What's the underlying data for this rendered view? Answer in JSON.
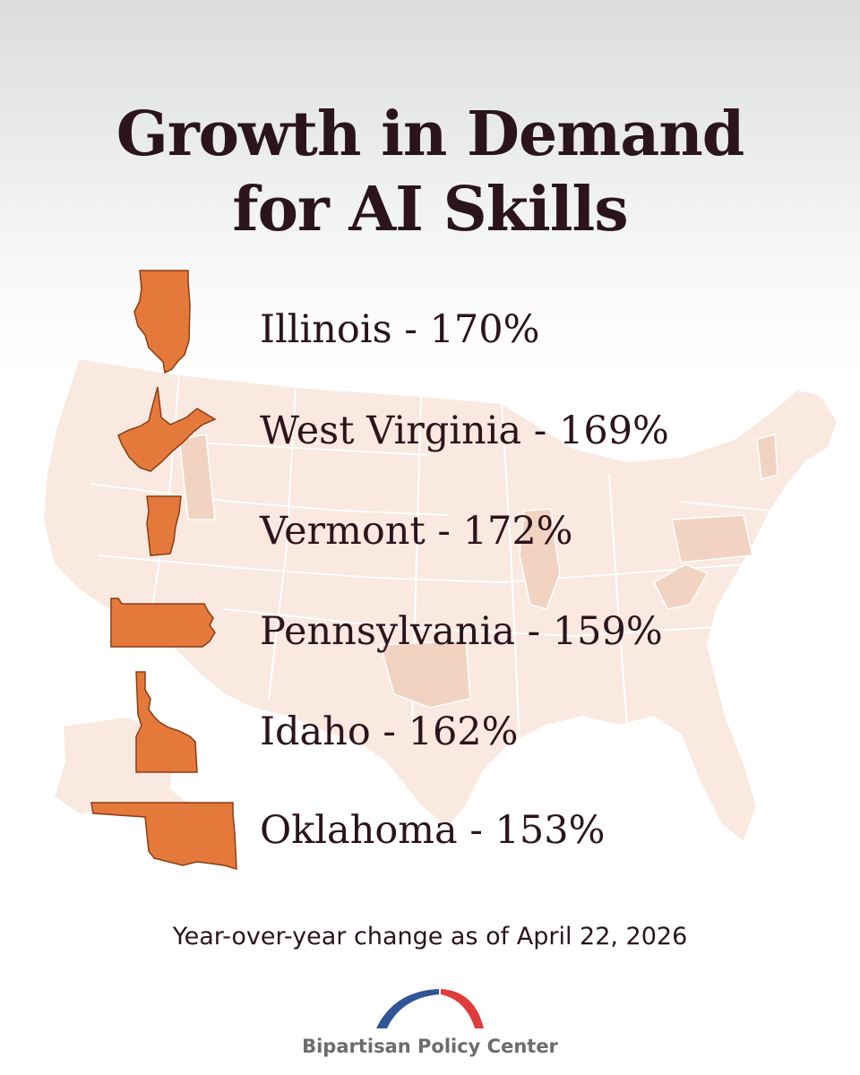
{
  "title": {
    "line1": "Growth in Demand",
    "line2": "for AI Skills"
  },
  "rows": [
    {
      "label": "Illinois - 170%",
      "state": "Illinois",
      "value": 170
    },
    {
      "label": "West Virginia - 169%",
      "state": "West Virginia",
      "value": 169
    },
    {
      "label": "Vermont - 172%",
      "state": "Vermont",
      "value": 172
    },
    {
      "label": "Pennsylvania - 159%",
      "state": "Pennsylvania",
      "value": 159
    },
    {
      "label": "Idaho - 162%",
      "state": "Idaho",
      "value": 162
    },
    {
      "label": "Oklahoma - 153%",
      "state": "Oklahoma",
      "value": 153
    }
  ],
  "footnote": "Year-over-year change as of April 22, 2026",
  "logo": {
    "text": "Bipartisan Policy Center",
    "colors": {
      "blue": "#2f5597",
      "red": "#e03c3c"
    }
  },
  "colors": {
    "title": "#2b141c",
    "state_fill": "#e5793b",
    "state_stroke": "#8a3d12",
    "map_fill": "#f8e6dc",
    "map_highlight": "#f2cfbd"
  }
}
